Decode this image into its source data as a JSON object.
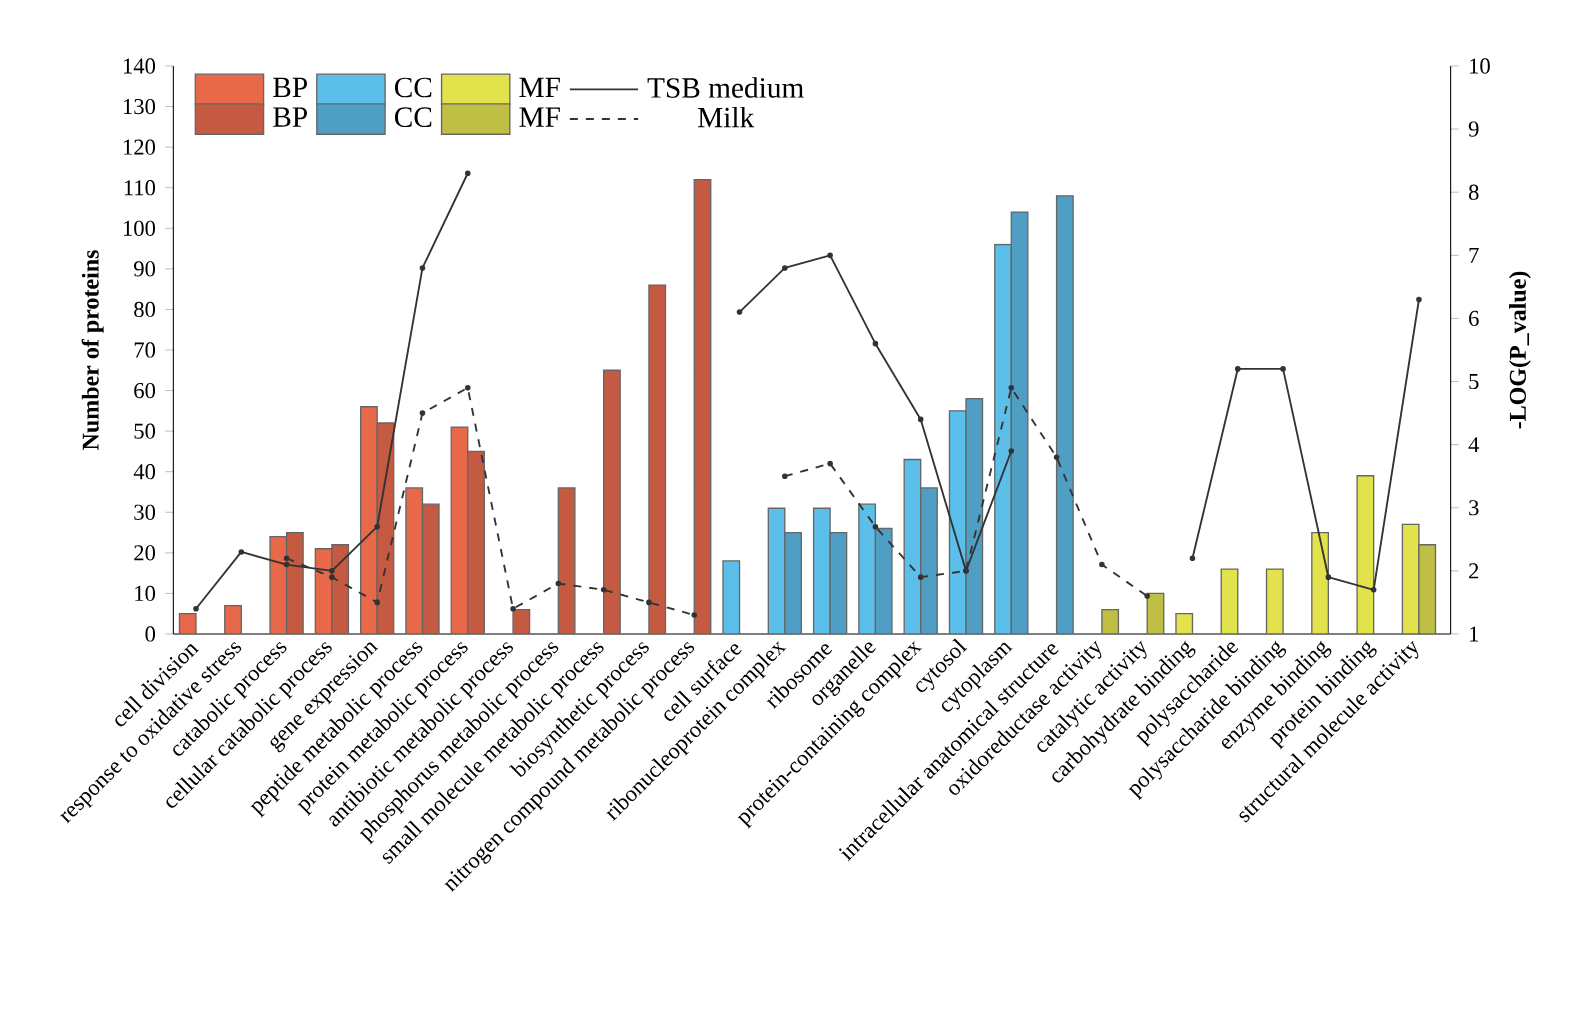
{
  "chart_data": {
    "type": "bar",
    "categories": [
      "cell division",
      "response to oxidative stress",
      "catabolic process",
      "cellular catabolic process",
      "gene expression",
      "peptide metabolic process",
      "protein metabolic process",
      "antibiotic metabolic process",
      "phosphorus metabolic process",
      "small molecule metabolic process",
      "biosynthetic process",
      "nitrogen compound metabolic process",
      "cell surface",
      "ribonucleoprotein complex",
      "ribosome",
      "organelle",
      "protein-containing complex",
      "cytosol",
      "cytoplasm",
      "intracellular anatomical structure",
      "oxidoreductase activity",
      "catalytic activity",
      "carbohydrate binding",
      "polysaccharide",
      "polysaccharide binding",
      "enzyme binding",
      "protein binding",
      "structural molecule activity"
    ],
    "ylabel": "Number of proteins",
    "y2label": "-LOG(P_value)",
    "ylim": [
      0,
      140
    ],
    "yticks": [
      0,
      10,
      20,
      30,
      40,
      50,
      60,
      70,
      80,
      90,
      100,
      110,
      120,
      130,
      140
    ],
    "y2lim": [
      1,
      10
    ],
    "y2ticks": [
      1,
      2,
      3,
      4,
      5,
      6,
      7,
      8,
      9,
      10
    ],
    "legend": "top left",
    "marker": "circle",
    "grid": false,
    "series": [
      {
        "name": "BP",
        "color": "#e8694a",
        "values": [
          5,
          7,
          24,
          21,
          56,
          36,
          51,
          null,
          null,
          null,
          null,
          null,
          null,
          null,
          null,
          null,
          null,
          null,
          null,
          null,
          null,
          null,
          null,
          null,
          null,
          null,
          null,
          null
        ]
      },
      {
        "name": "CC",
        "color": "#5bbfea",
        "values": [
          null,
          null,
          null,
          null,
          null,
          null,
          null,
          null,
          null,
          null,
          null,
          null,
          18,
          31,
          31,
          32,
          43,
          55,
          96,
          null,
          null,
          null,
          null,
          null,
          null,
          null,
          null,
          null
        ]
      },
      {
        "name": "MF",
        "color": "#e2e34c",
        "values": [
          null,
          null,
          null,
          null,
          null,
          null,
          null,
          null,
          null,
          null,
          null,
          null,
          null,
          null,
          null,
          null,
          null,
          null,
          null,
          null,
          null,
          null,
          5,
          16,
          16,
          25,
          39,
          27
        ]
      },
      {
        "name": "TSB medium",
        "type": "line",
        "axis": "y2",
        "color": "#333333",
        "line_style": "solid",
        "values": [
          1.4,
          2.3,
          2.1,
          2.0,
          2.7,
          6.8,
          8.3,
          null,
          null,
          null,
          null,
          null,
          6.1,
          6.8,
          7.0,
          5.6,
          4.4,
          2.0,
          3.9,
          null,
          null,
          null,
          2.2,
          5.2,
          5.2,
          1.9,
          1.7,
          6.3
        ]
      },
      {
        "name": "BP",
        "color": "#c45a42",
        "values": [
          null,
          null,
          25,
          22,
          52,
          32,
          45,
          6,
          36,
          65,
          86,
          112,
          null,
          null,
          null,
          null,
          null,
          null,
          null,
          null,
          null,
          null,
          null,
          null,
          null,
          null,
          null,
          null
        ]
      },
      {
        "name": "CC",
        "color": "#4f9fc4",
        "values": [
          null,
          null,
          null,
          null,
          null,
          null,
          null,
          null,
          null,
          null,
          null,
          null,
          null,
          25,
          25,
          26,
          36,
          58,
          104,
          108,
          null,
          null,
          null,
          null,
          null,
          null,
          null,
          null
        ]
      },
      {
        "name": "MF",
        "color": "#bebf44",
        "values": [
          null,
          null,
          null,
          null,
          null,
          null,
          null,
          null,
          null,
          null,
          null,
          null,
          null,
          null,
          null,
          null,
          null,
          null,
          null,
          null,
          6,
          10,
          null,
          null,
          null,
          null,
          null,
          22
        ]
      },
      {
        "name": "Milk",
        "type": "line",
        "axis": "y2",
        "color": "#333333",
        "line_style": "dashed",
        "values": [
          null,
          null,
          2.2,
          1.9,
          1.5,
          4.5,
          4.9,
          1.4,
          1.8,
          1.7,
          1.5,
          1.3,
          null,
          3.5,
          3.7,
          2.7,
          1.9,
          2.0,
          4.9,
          3.8,
          2.1,
          1.6,
          null,
          null,
          null,
          null,
          null,
          null
        ]
      }
    ]
  }
}
